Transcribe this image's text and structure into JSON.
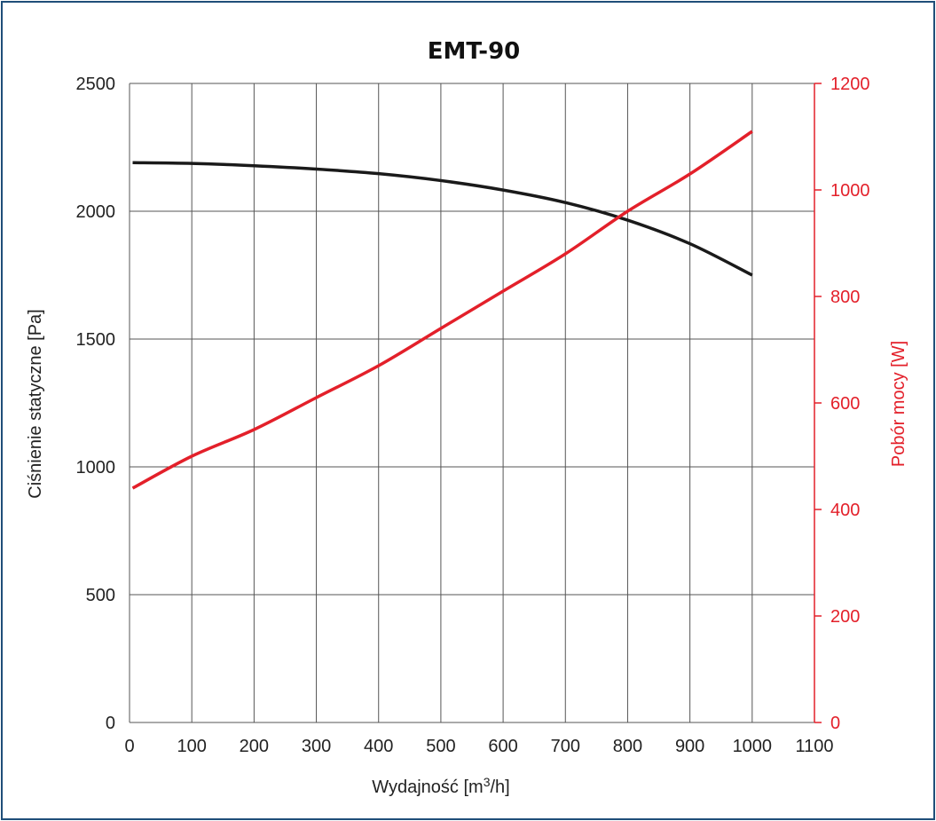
{
  "chart_data": {
    "type": "line",
    "title": "EMT-90",
    "xlabel": "Wydajność [m³/h]",
    "xlabel_main": "Wydajność [m",
    "xlabel_sup": "3",
    "xlabel_end": "/h]",
    "ylabel_left": "Ciśnienie statyczne [Pa]",
    "ylabel_right": "Pobór mocy [W]",
    "xlim": [
      0,
      1100
    ],
    "ylim_left": [
      0,
      2500
    ],
    "ylim_right": [
      0,
      1200
    ],
    "x_ticks": [
      "0",
      "100",
      "200",
      "300",
      "400",
      "500",
      "600",
      "700",
      "800",
      "900",
      "1000",
      "1100"
    ],
    "y_left_ticks": [
      "0",
      "500",
      "1000",
      "1500",
      "2000",
      "2500"
    ],
    "y_right_ticks": [
      "0",
      "200",
      "400",
      "600",
      "800",
      "1000",
      "1200"
    ],
    "grid": true,
    "series": [
      {
        "axis": "left",
        "color": "#1a1a1a",
        "x": [
          5,
          100,
          200,
          300,
          400,
          500,
          600,
          700,
          800,
          900,
          1000
        ],
        "y": [
          2190,
          2187,
          2178,
          2165,
          2147,
          2120,
          2083,
          2034,
          1965,
          1873,
          1750
        ]
      },
      {
        "axis": "right",
        "color": "#e3202a",
        "x": [
          5,
          100,
          200,
          300,
          400,
          500,
          600,
          700,
          800,
          900,
          1000
        ],
        "y": [
          440,
          500,
          550,
          610,
          670,
          740,
          810,
          880,
          960,
          1030,
          1110
        ]
      }
    ]
  }
}
